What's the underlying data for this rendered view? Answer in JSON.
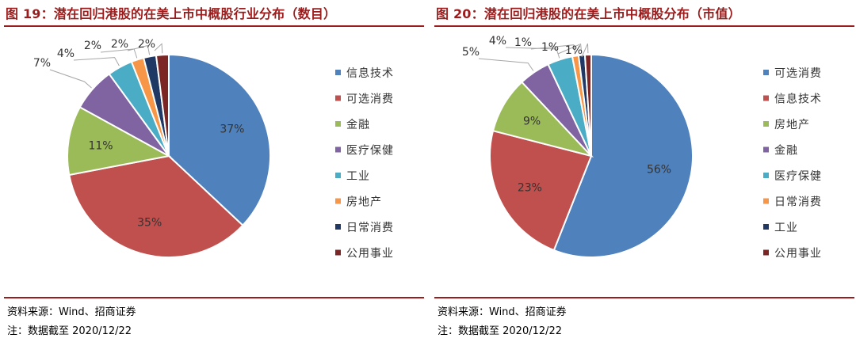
{
  "colors": {
    "title": "#9b1c1c",
    "rule": "#9b1c1c",
    "blue": "#4f81bd",
    "red": "#c0504d",
    "green": "#9bbb59",
    "purple": "#8064a2",
    "teal": "#4bacc6",
    "orange": "#f79646",
    "navy": "#1f3864",
    "maroon": "#7b2525"
  },
  "chart_data": [
    {
      "type": "pie",
      "title": "图 19：潜在回归港股的在美上市中概股行业分布（数目）",
      "legend_position": "right",
      "series": [
        {
          "name": "信息技术",
          "value": 37,
          "label": "37%",
          "color": "#4f81bd"
        },
        {
          "name": "可选消费",
          "value": 35,
          "label": "35%",
          "color": "#c0504d"
        },
        {
          "name": "金融",
          "value": 11,
          "label": "11%",
          "color": "#9bbb59"
        },
        {
          "name": "医疗保健",
          "value": 7,
          "label": "7%",
          "color": "#8064a2"
        },
        {
          "name": "工业",
          "value": 4,
          "label": "4%",
          "color": "#4bacc6"
        },
        {
          "name": "房地产",
          "value": 2,
          "label": "2%",
          "color": "#f79646"
        },
        {
          "name": "日常消费",
          "value": 2,
          "label": "2%",
          "color": "#1f3864"
        },
        {
          "name": "公用事业",
          "value": 2,
          "label": "2%",
          "color": "#7b2525"
        }
      ]
    },
    {
      "type": "pie",
      "title": "图 20：潜在回归港股的在美上市中概股分布（市值）",
      "legend_position": "right",
      "series": [
        {
          "name": "可选消费",
          "value": 56,
          "label": "56%",
          "color": "#4f81bd"
        },
        {
          "name": "信息技术",
          "value": 23,
          "label": "23%",
          "color": "#c0504d"
        },
        {
          "name": "房地产",
          "value": 9,
          "label": "9%",
          "color": "#9bbb59"
        },
        {
          "name": "金融",
          "value": 5,
          "label": "5%",
          "color": "#8064a2"
        },
        {
          "name": "医疗保健",
          "value": 4,
          "label": "4%",
          "color": "#4bacc6"
        },
        {
          "name": "日常消费",
          "value": 1,
          "label": "1%",
          "color": "#f79646"
        },
        {
          "name": "工业",
          "value": 1,
          "label": "1%",
          "color": "#1f3864"
        },
        {
          "name": "公用事业",
          "value": 1,
          "label": "1%",
          "color": "#7b2525"
        }
      ]
    }
  ],
  "footer": {
    "source": "资料来源：Wind、招商证券",
    "note": "注：数据截至 2020/12/22"
  }
}
